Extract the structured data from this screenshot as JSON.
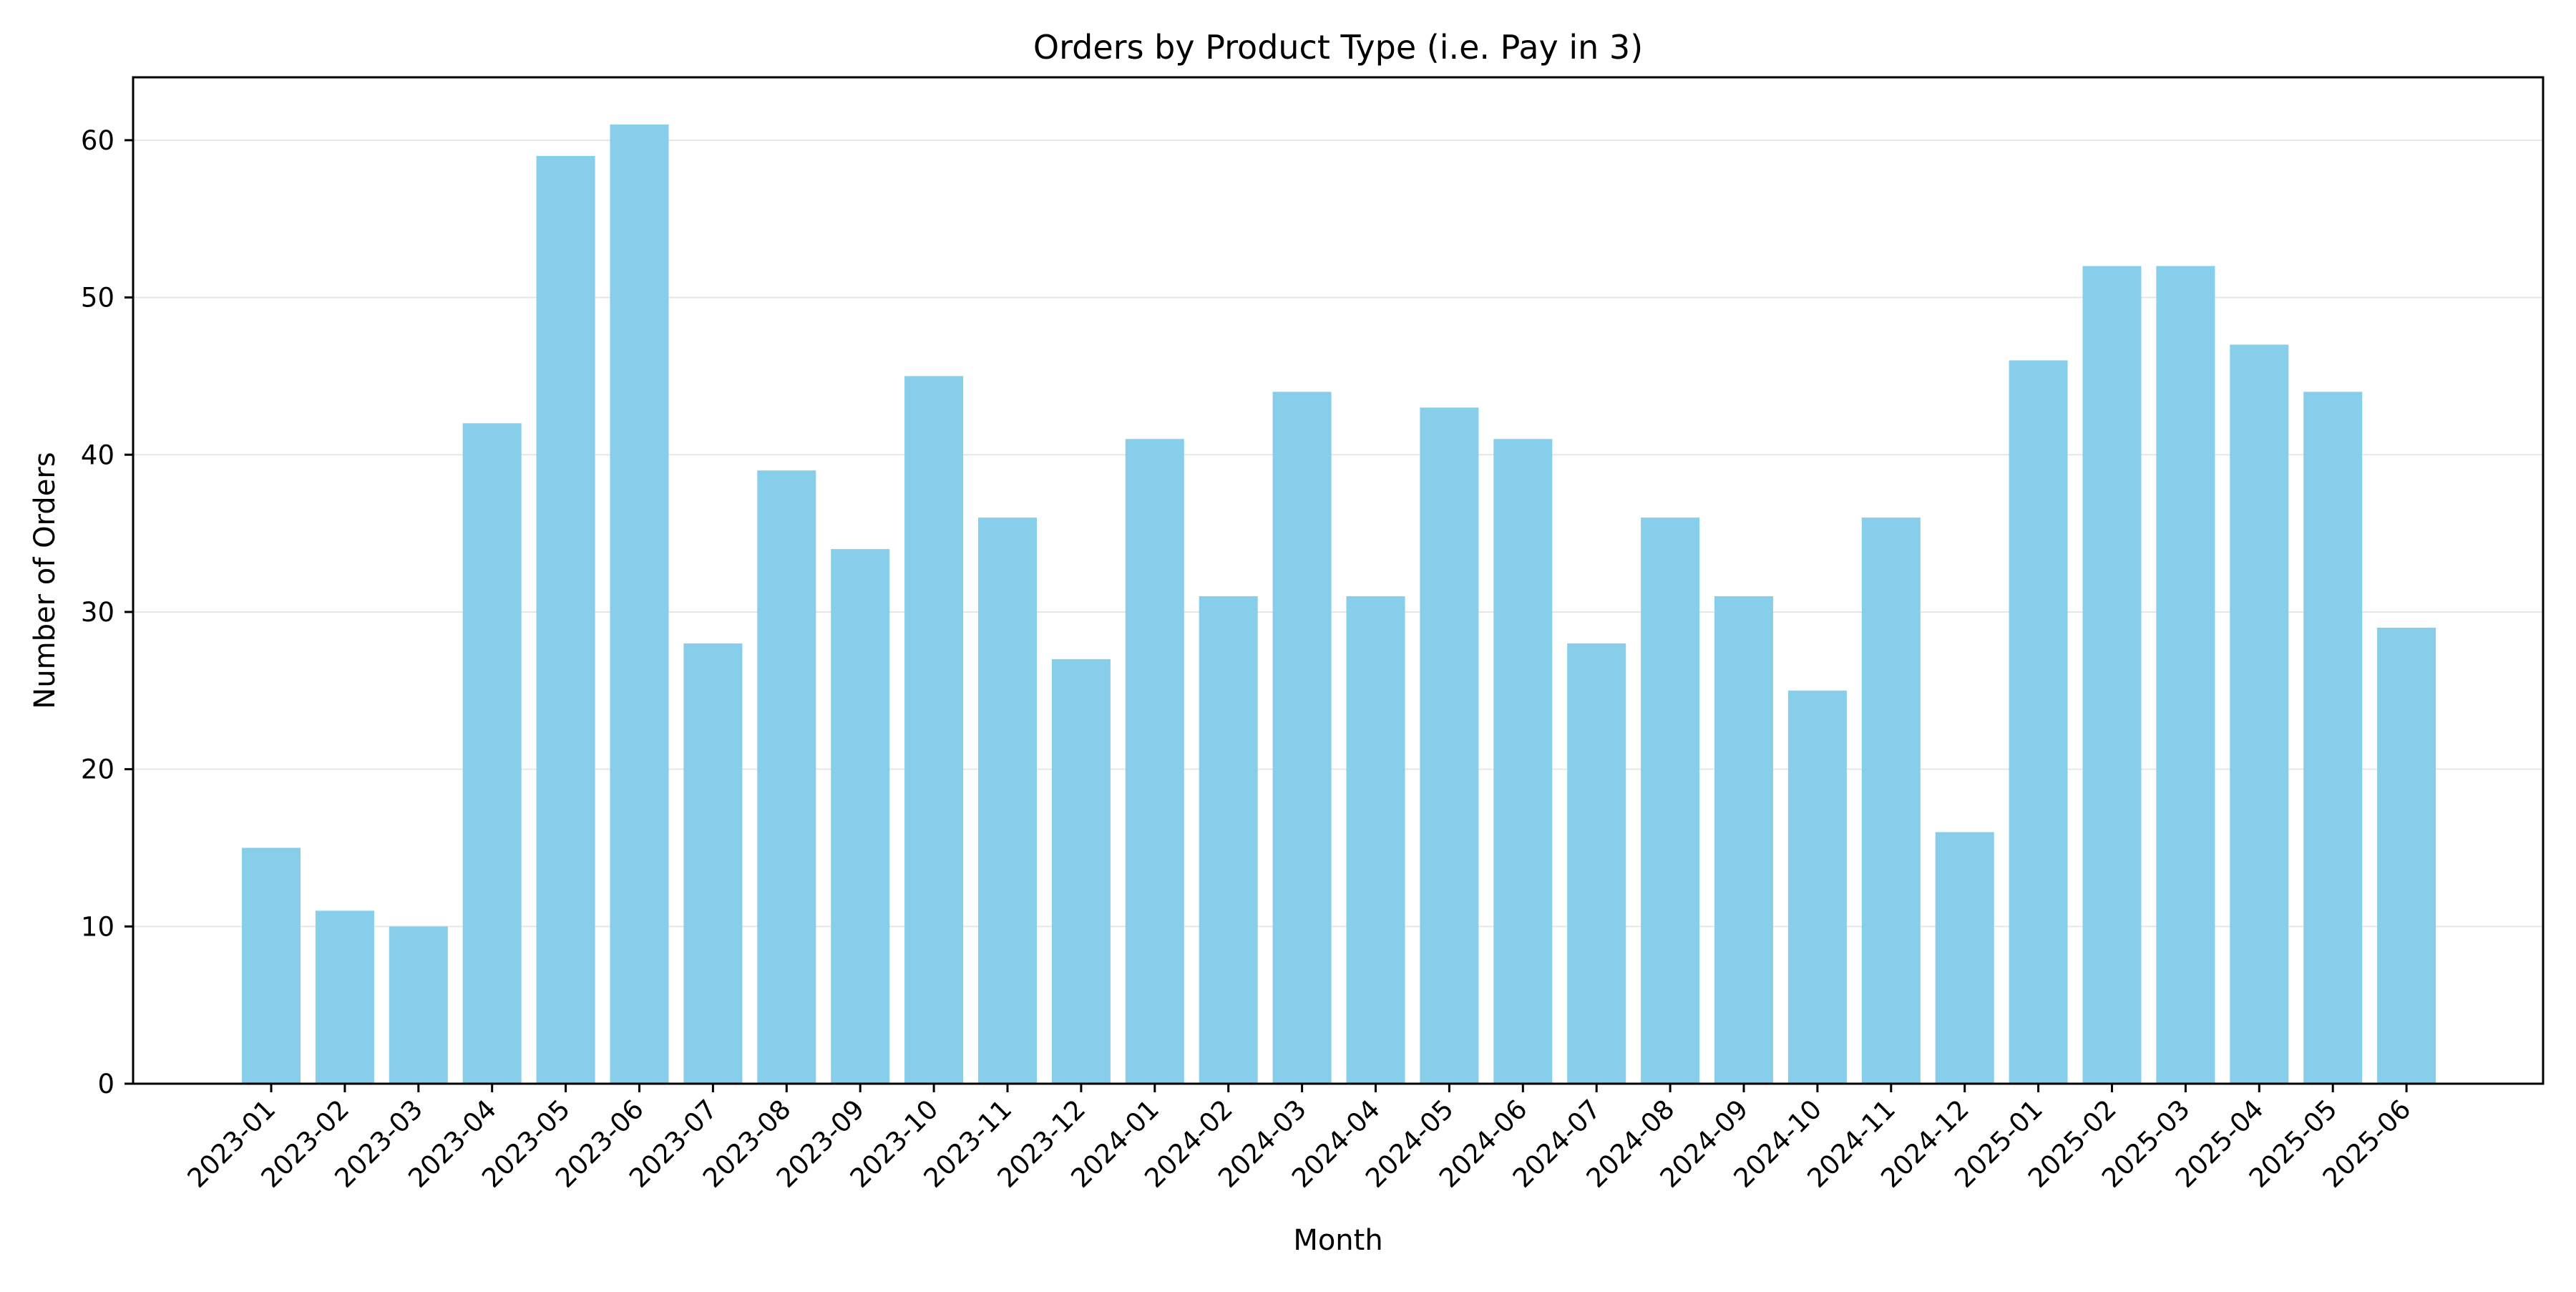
{
  "chart_data": {
    "type": "bar",
    "title": "Orders by Product Type (i.e. Pay in 3)",
    "xlabel": "Month",
    "ylabel": "Number of Orders",
    "categories": [
      "2023-01",
      "2023-02",
      "2023-03",
      "2023-04",
      "2023-05",
      "2023-06",
      "2023-07",
      "2023-08",
      "2023-09",
      "2023-10",
      "2023-11",
      "2023-12",
      "2024-01",
      "2024-02",
      "2024-03",
      "2024-04",
      "2024-05",
      "2024-06",
      "2024-07",
      "2024-08",
      "2024-09",
      "2024-10",
      "2024-11",
      "2024-12",
      "2025-01",
      "2025-02",
      "2025-03",
      "2025-04",
      "2025-05",
      "2025-06"
    ],
    "values": [
      15,
      11,
      10,
      42,
      59,
      61,
      28,
      39,
      34,
      45,
      36,
      27,
      41,
      31,
      44,
      31,
      43,
      41,
      28,
      36,
      31,
      25,
      36,
      16,
      46,
      52,
      52,
      47,
      44,
      29
    ],
    "ylim": [
      0,
      64
    ],
    "yticks": [
      0,
      10,
      20,
      30,
      40,
      50,
      60
    ],
    "grid": "horizontal",
    "bar_color": "#87CEEB",
    "grid_color": "#e6e6e6",
    "axis_color": "#000000"
  }
}
